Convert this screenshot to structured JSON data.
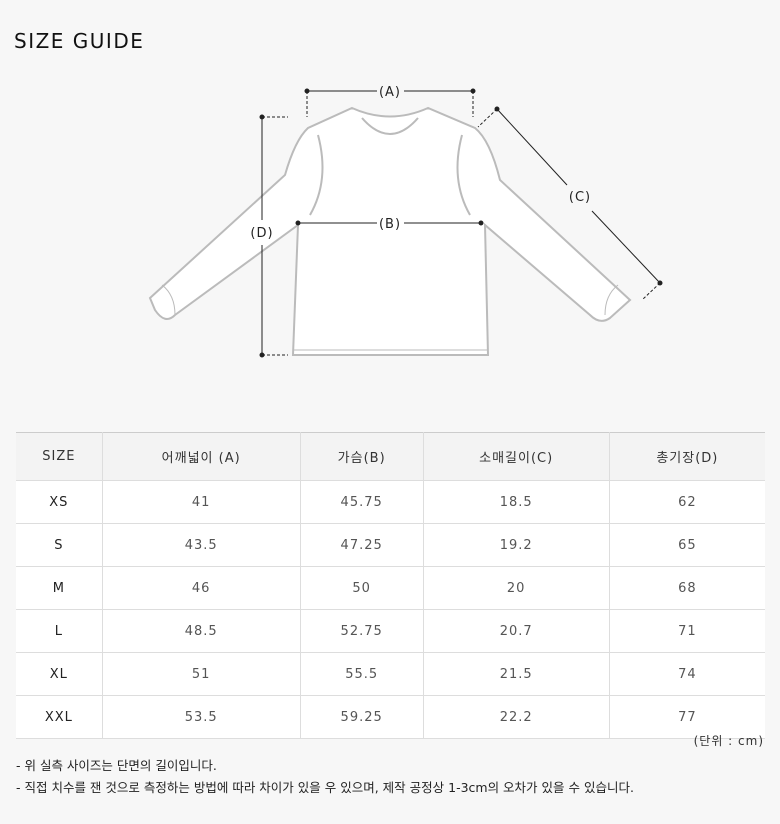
{
  "title": "SIZE GUIDE",
  "diagram": {
    "labels": {
      "a": "(A)",
      "b": "(B)",
      "c": "(C)",
      "d": "(D)"
    }
  },
  "table": {
    "headers": [
      "SIZE",
      "어깨넓이 (A)",
      "가슴(B)",
      "소매길이(C)",
      "총기장(D)"
    ],
    "rows": [
      [
        "XS",
        "41",
        "45.75",
        "18.5",
        "62"
      ],
      [
        "S",
        "43.5",
        "47.25",
        "19.2",
        "65"
      ],
      [
        "M",
        "46",
        "50",
        "20",
        "68"
      ],
      [
        "L",
        "48.5",
        "52.75",
        "20.7",
        "71"
      ],
      [
        "XL",
        "51",
        "55.5",
        "21.5",
        "74"
      ],
      [
        "XXL",
        "53.5",
        "59.25",
        "22.2",
        "77"
      ]
    ]
  },
  "unit": "(단위 : cm)",
  "notes": [
    "- 위 실측 사이즈는 단면의 길이입니다.",
    "- 직접 치수를 잰 것으로 측정하는 방법에 따라 차이가 있을 우 있으며, 제작 공정상 1-3cm의 오차가 있을 수 있습니다."
  ]
}
